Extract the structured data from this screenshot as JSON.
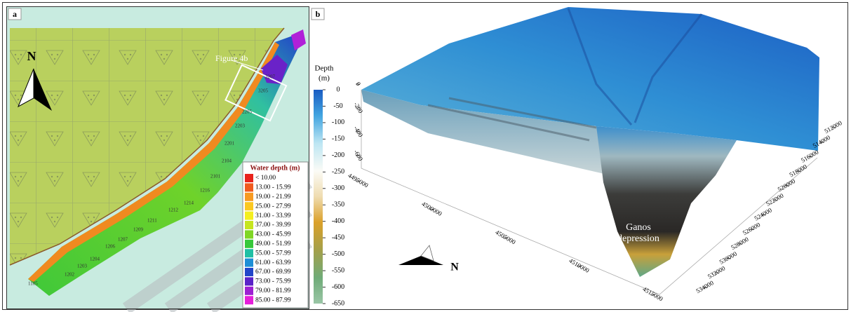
{
  "panel_a": {
    "label": "a",
    "north": "N",
    "callout": "Figure 4b",
    "stations": [
      "1105",
      "1202",
      "1203",
      "1204",
      "1206",
      "1207",
      "1209",
      "1211",
      "1212",
      "1214",
      "1216",
      "2101",
      "2104",
      "2201",
      "2203",
      "2205",
      "3205",
      "3207"
    ],
    "legend": {
      "title": "Water depth (m)",
      "items": [
        {
          "label": "< 10.00",
          "color": "#e8231c"
        },
        {
          "label": "13.00 - 15.99",
          "color": "#f05a1e"
        },
        {
          "label": "19.00 - 21.99",
          "color": "#f79a22"
        },
        {
          "label": "25.00 - 27.99",
          "color": "#fbc821"
        },
        {
          "label": "31.00 - 33.99",
          "color": "#f4ee1f"
        },
        {
          "label": "37.00 - 39.99",
          "color": "#c6e51f"
        },
        {
          "label": "43.00 - 45.99",
          "color": "#7fd625"
        },
        {
          "label": "49.00 - 51.99",
          "color": "#36c83a"
        },
        {
          "label": "55.00 - 57.99",
          "color": "#1fbfa4"
        },
        {
          "label": "61.00 - 63.99",
          "color": "#1e8fd6"
        },
        {
          "label": "67.00 - 69.99",
          "color": "#2246c9"
        },
        {
          "label": "73.00 - 75.99",
          "color": "#5a22c8"
        },
        {
          "label": "79.00 - 81.99",
          "color": "#9d1fd2"
        },
        {
          "label": "85.00 - 87.99",
          "color": "#e41fd9"
        }
      ]
    }
  },
  "panel_b": {
    "label": "b",
    "north": "N",
    "colorbar": {
      "title": [
        "Depth",
        "(m)"
      ],
      "ticks": [
        0,
        -50,
        -100,
        -150,
        -200,
        -250,
        -300,
        -350,
        -400,
        -450,
        -500,
        -550,
        -600,
        -650
      ]
    },
    "depth_ticks": [
      0,
      -200,
      -400,
      -600
    ],
    "northing_ticks": [
      4495000,
      4500000,
      4505000,
      4510000,
      4515000
    ],
    "easting_ticks": [
      512000,
      514000,
      516000,
      518000,
      520000,
      522000,
      524000,
      526000,
      528000,
      530000,
      532000,
      534000
    ],
    "annotation": [
      "Ganos",
      "depression"
    ]
  }
}
